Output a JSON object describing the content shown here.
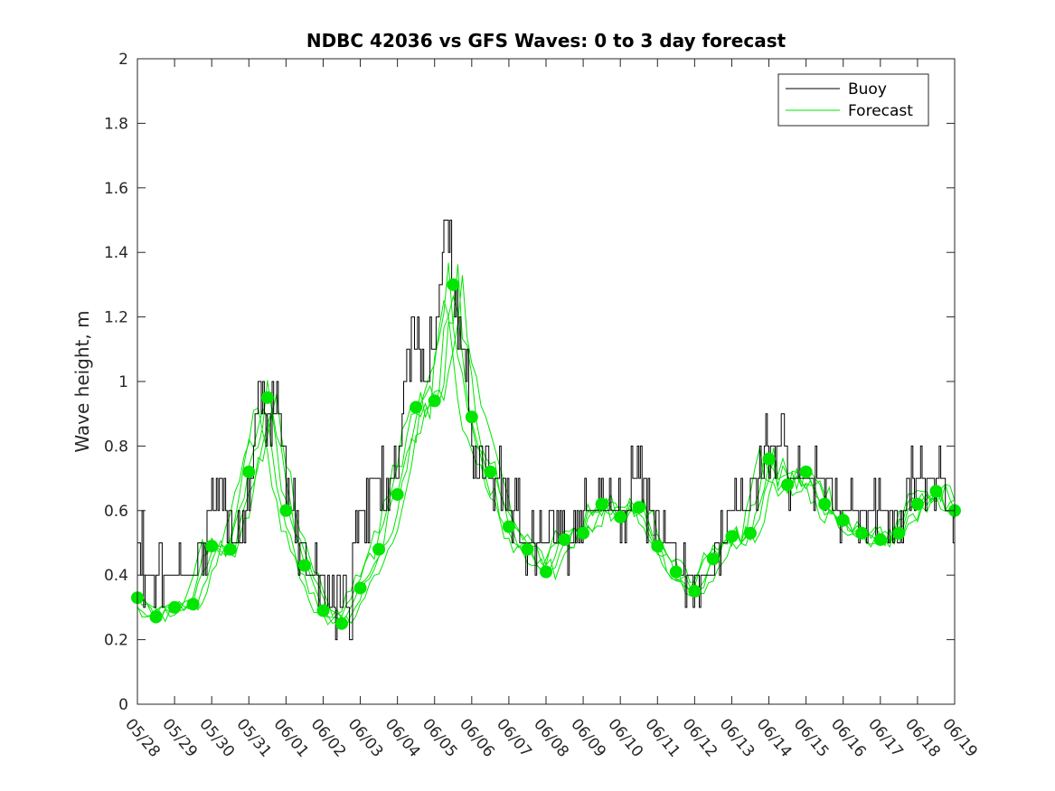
{
  "chart_data": {
    "type": "line",
    "title": "NDBC 42036 vs GFS Waves: 0 to 3 day forecast",
    "xlabel": "",
    "ylabel": "Wave height, m",
    "ylim": [
      0,
      2
    ],
    "yticks": [
      "0",
      "0.2",
      "0.4",
      "0.6",
      "0.8",
      "1",
      "1.2",
      "1.4",
      "1.6",
      "1.8",
      "2"
    ],
    "xticks": [
      "05/28",
      "05/29",
      "05/30",
      "05/31",
      "06/01",
      "06/02",
      "06/03",
      "06/04",
      "06/05",
      "06/06",
      "06/07",
      "06/08",
      "06/09",
      "06/10",
      "06/11",
      "06/12",
      "06/13",
      "06/14",
      "06/15",
      "06/16",
      "06/17",
      "06/18",
      "06/19"
    ],
    "grid": false,
    "legend": {
      "placement": "top-right",
      "entries": [
        "Buoy",
        "Forecast"
      ]
    },
    "colors": {
      "buoy": "#000000",
      "forecast": "#00e600",
      "axis": "#262626"
    },
    "series": [
      {
        "name": "Buoy",
        "x": [
          "05/28",
          "05/28 06h",
          "05/28 12h",
          "05/28 18h",
          "05/29",
          "05/29 12h",
          "05/30",
          "05/30 06h",
          "05/30 12h",
          "05/30 18h",
          "05/31",
          "05/31 06h",
          "05/31 12h",
          "05/31 18h",
          "06/01",
          "06/01 06h",
          "06/01 12h",
          "06/01 18h",
          "06/02",
          "06/02 06h",
          "06/02 12h",
          "06/02 18h",
          "06/03",
          "06/03 12h",
          "06/04",
          "06/04 06h",
          "06/04 12h",
          "06/04 18h",
          "06/05",
          "06/05 06h",
          "06/05 12h",
          "06/05 18h",
          "06/06",
          "06/06 06h",
          "06/06 12h",
          "06/06 18h",
          "06/07",
          "06/07 12h",
          "06/08",
          "06/08 12h",
          "06/09",
          "06/09 12h",
          "06/10",
          "06/10 12h",
          "06/11",
          "06/11 12h",
          "06/12",
          "06/12 12h",
          "06/13",
          "06/13 12h",
          "06/14",
          "06/14 12h",
          "06/15",
          "06/15 12h",
          "06/16",
          "06/16 12h",
          "06/17",
          "06/17 12h",
          "06/18",
          "06/18 12h",
          "06/19"
        ],
        "values": [
          0.5,
          0.4,
          0.35,
          0.4,
          0.45,
          0.4,
          0.6,
          0.7,
          0.55,
          0.5,
          0.6,
          1.0,
          0.9,
          0.95,
          0.7,
          0.55,
          0.45,
          0.4,
          0.35,
          0.3,
          0.25,
          0.3,
          0.6,
          0.7,
          0.7,
          1.1,
          1.2,
          1.0,
          1.1,
          1.5,
          1.3,
          1.1,
          0.8,
          0.75,
          0.7,
          0.65,
          0.6,
          0.5,
          0.45,
          0.5,
          0.55,
          0.65,
          0.6,
          0.7,
          0.55,
          0.45,
          0.4,
          0.45,
          0.6,
          0.65,
          0.8,
          0.75,
          0.7,
          0.7,
          0.6,
          0.55,
          0.55,
          0.6,
          0.7,
          0.7,
          0.6
        ]
      },
      {
        "name": "Forecast",
        "x": [
          "05/28",
          "05/28 12h",
          "05/29",
          "05/29 12h",
          "05/30",
          "05/30 12h",
          "05/31",
          "05/31 12h",
          "06/01",
          "06/01 12h",
          "06/02",
          "06/02 12h",
          "06/03",
          "06/03 12h",
          "06/04",
          "06/04 12h",
          "06/05",
          "06/05 12h",
          "06/06",
          "06/06 12h",
          "06/07",
          "06/07 12h",
          "06/08",
          "06/08 12h",
          "06/09",
          "06/09 12h",
          "06/10",
          "06/10 12h",
          "06/11",
          "06/11 12h",
          "06/12",
          "06/12 12h",
          "06/13",
          "06/13 12h",
          "06/14",
          "06/14 12h",
          "06/15",
          "06/15 12h",
          "06/16",
          "06/16 12h",
          "06/17",
          "06/17 12h",
          "06/18",
          "06/18 12h",
          "06/19"
        ],
        "values": [
          0.33,
          0.27,
          0.3,
          0.31,
          0.49,
          0.48,
          0.72,
          0.95,
          0.6,
          0.43,
          0.29,
          0.25,
          0.36,
          0.48,
          0.65,
          0.92,
          0.94,
          1.3,
          0.89,
          0.72,
          0.55,
          0.48,
          0.41,
          0.51,
          0.53,
          0.62,
          0.58,
          0.61,
          0.49,
          0.41,
          0.35,
          0.45,
          0.52,
          0.53,
          0.76,
          0.68,
          0.72,
          0.62,
          0.57,
          0.53,
          0.51,
          0.53,
          0.62,
          0.66,
          0.6
        ]
      }
    ]
  }
}
